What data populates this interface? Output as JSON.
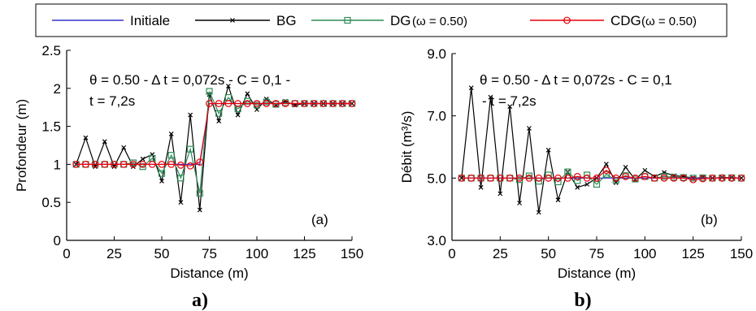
{
  "legend": {
    "entries": [
      {
        "label": "Initiale",
        "color": "#3333cc",
        "marker": "none"
      },
      {
        "label": "BG",
        "color": "#000000",
        "marker": "x"
      },
      {
        "label": "DG",
        "omega": "(ω = 0.50)",
        "color": "#2e8b57",
        "marker": "square"
      },
      {
        "label": "CDG",
        "omega": "(ω = 0.50)",
        "color": "#e8000b",
        "marker": "circle"
      }
    ]
  },
  "chart_data": [
    {
      "type": "line",
      "panel": "a",
      "caption": "a)",
      "panel_label": "(a)",
      "annotation_line1": "θ = 0.50 - Δ t = 0,072s - C = 0,1 -",
      "annotation_line2": "t = 7,2s",
      "xlabel": "Distance (m)",
      "ylabel": "Profondeur (m)",
      "xlim": [
        0,
        150
      ],
      "ylim": [
        0,
        2.5
      ],
      "xticks": [
        "0",
        "25",
        "50",
        "75",
        "100",
        "125",
        "150"
      ],
      "yticks": [
        "0",
        "0.5",
        "1",
        "1.5",
        "2",
        "2.5"
      ],
      "grid": false,
      "x": [
        5,
        10,
        15,
        20,
        25,
        30,
        35,
        40,
        45,
        50,
        55,
        60,
        65,
        70,
        75,
        80,
        85,
        90,
        95,
        100,
        105,
        110,
        115,
        120,
        125,
        130,
        135,
        140,
        145,
        150
      ],
      "series": [
        {
          "name": "Initiale",
          "values": [
            1,
            1,
            1,
            1,
            1,
            1,
            1,
            1,
            1,
            1,
            1,
            1,
            1,
            1,
            1.8,
            1.8,
            1.8,
            1.8,
            1.8,
            1.8,
            1.8,
            1.8,
            1.8,
            1.8,
            1.8,
            1.8,
            1.8,
            1.8,
            1.8,
            1.8
          ]
        },
        {
          "name": "BG",
          "values": [
            1,
            1.35,
            0.97,
            1.3,
            0.97,
            1.22,
            0.97,
            1.07,
            1.13,
            0.78,
            1.4,
            0.5,
            1.65,
            0.4,
            1.92,
            1.57,
            2.03,
            1.65,
            1.93,
            1.72,
            1.86,
            1.78,
            1.83,
            1.78,
            1.8,
            1.8,
            1.8,
            1.8,
            1.8,
            1.8
          ]
        },
        {
          "name": "DG",
          "values": [
            1,
            1,
            1,
            1,
            1,
            1,
            1.02,
            0.97,
            1.08,
            0.88,
            1.12,
            0.82,
            1.2,
            0.62,
            1.96,
            1.67,
            1.88,
            1.73,
            1.83,
            1.78,
            1.82,
            1.79,
            1.81,
            1.8,
            1.8,
            1.8,
            1.8,
            1.8,
            1.8,
            1.8
          ]
        },
        {
          "name": "CDG",
          "values": [
            1,
            1,
            1,
            1,
            1,
            1,
            1,
            1,
            1,
            1,
            1,
            0.99,
            0.98,
            1.03,
            1.8,
            1.8,
            1.8,
            1.8,
            1.8,
            1.8,
            1.8,
            1.8,
            1.8,
            1.8,
            1.8,
            1.8,
            1.8,
            1.8,
            1.8,
            1.8
          ]
        }
      ]
    },
    {
      "type": "line",
      "panel": "b",
      "caption": "b)",
      "panel_label": "(b)",
      "annotation_line1": "θ = 0.50 - Δ t = 0,072s - C = 0,1",
      "annotation_line2": "- t = 7,2s",
      "xlabel": "Distance (m)",
      "ylabel": "Débit (m³/s)",
      "xlim": [
        0,
        150
      ],
      "ylim": [
        3,
        9
      ],
      "xticks": [
        "0",
        "25",
        "50",
        "75",
        "100",
        "125",
        "150"
      ],
      "yticks": [
        "3.0",
        "5.0",
        "7.0",
        "9.0"
      ],
      "grid": false,
      "x": [
        5,
        10,
        15,
        20,
        25,
        30,
        35,
        40,
        45,
        50,
        55,
        60,
        65,
        70,
        75,
        80,
        85,
        90,
        95,
        100,
        105,
        110,
        115,
        120,
        125,
        130,
        135,
        140,
        145,
        150
      ],
      "series": [
        {
          "name": "Initiale",
          "values": [
            5,
            5,
            5,
            5,
            5,
            5,
            5,
            5,
            5,
            5,
            5,
            5,
            5,
            5,
            5,
            5,
            5,
            5,
            5,
            5,
            5,
            5,
            5,
            5,
            5,
            5,
            5,
            5,
            5,
            5
          ]
        },
        {
          "name": "BG",
          "values": [
            5,
            7.9,
            4.7,
            7.6,
            4.5,
            7.3,
            4.2,
            6.6,
            3.9,
            5.9,
            4.3,
            5.2,
            4.7,
            4.8,
            5,
            5.45,
            4.85,
            5.35,
            4.95,
            5.25,
            5.05,
            5.18,
            5.08,
            5.05,
            5,
            5.02,
            5,
            5.02,
            5.02,
            5
          ]
        },
        {
          "name": "DG",
          "values": [
            5,
            5,
            5,
            5,
            5,
            5,
            4.95,
            5.07,
            4.9,
            5.1,
            4.88,
            5.2,
            4.92,
            5.1,
            4.8,
            5.12,
            4.93,
            5.08,
            4.97,
            5.05,
            5,
            5.05,
            5.03,
            5.02,
            5,
            5.01,
            5,
            5.01,
            5.01,
            5
          ]
        },
        {
          "name": "CDG",
          "values": [
            5,
            5,
            5,
            5,
            5,
            5,
            5,
            5,
            5,
            5,
            5,
            5,
            5.05,
            5,
            5,
            5.25,
            5,
            5.05,
            5,
            5.05,
            5,
            5,
            5,
            5,
            4.95,
            4.98,
            5,
            5,
            5,
            5
          ]
        }
      ]
    }
  ]
}
